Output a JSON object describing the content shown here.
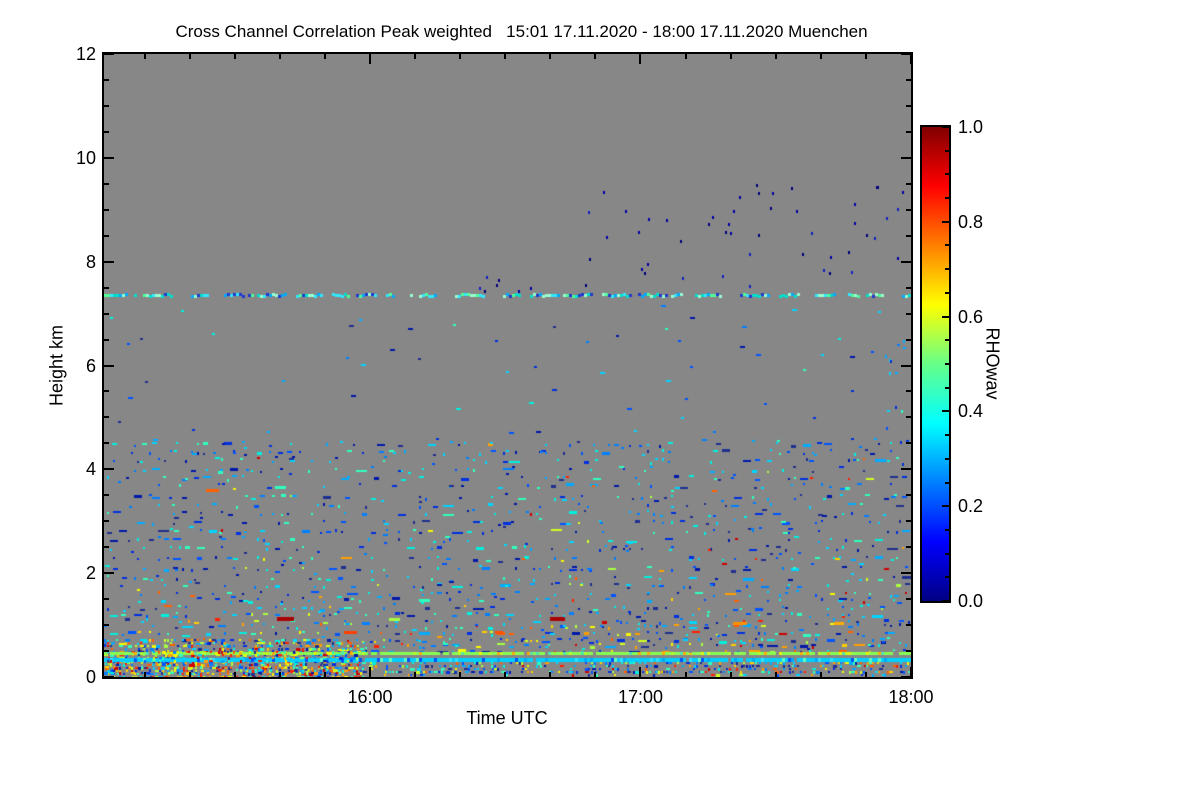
{
  "chart_data": {
    "type": "heatmap",
    "title": "Cross Channel Correlation Peak weighted   15:01 17.11.2020 - 18:00 17.11.2020 Muenchen",
    "station": "Muenchen",
    "time_start": "15:01 17.11.2020",
    "time_end": "18:00 17.11.2020",
    "xlabel": "Time UTC",
    "ylabel": "Height km",
    "colorbar_label": "RHOwav",
    "x_start_min": 901,
    "x_end_min": 1080,
    "x_major_ticks": [
      {
        "min": 960,
        "label": "16:00"
      },
      {
        "min": 1020,
        "label": "17:00"
      },
      {
        "min": 1080,
        "label": "18:00"
      }
    ],
    "x_minor_step_min": 10,
    "y_min": 0,
    "y_max": 12,
    "y_major_step": 2,
    "y_minor_step": 0.5,
    "y_tick_labels": [
      "0",
      "2",
      "4",
      "6",
      "8",
      "10",
      "12"
    ],
    "cbar_min": 0.0,
    "cbar_max": 1.0,
    "cbar_major_step": 0.2,
    "cbar_minor_step": 0.05,
    "cbar_tick_labels": [
      "0.0",
      "0.2",
      "0.4",
      "0.6",
      "0.8",
      "1.0"
    ],
    "colormap": [
      {
        "p": 0.0,
        "c": "#000083"
      },
      {
        "p": 0.125,
        "c": "#0000ff"
      },
      {
        "p": 0.375,
        "c": "#00ffff"
      },
      {
        "p": 0.5,
        "c": "#66ff88"
      },
      {
        "p": 0.625,
        "c": "#ffff00"
      },
      {
        "p": 0.875,
        "c": "#ff0000"
      },
      {
        "p": 1.0,
        "c": "#800000"
      }
    ],
    "background": "#878787",
    "features": {
      "palettes": {
        "cold": [
          "#0018a8",
          "#0030e0",
          "#0055ff",
          "#0080ff",
          "#00aaff",
          "#00d5ff",
          "#00f0e0",
          "#30ffc0",
          "#203090"
        ],
        "warm": [
          "#a8ff40",
          "#d0ff20",
          "#f8f800",
          "#ffd000",
          "#ffa000",
          "#ff6000",
          "#ff2000",
          "#d00000"
        ],
        "navy": [
          "#000080",
          "#0000a8",
          "#1020c8"
        ],
        "cyan_line": [
          "#00d0ff",
          "#30e0ff",
          "#00aaff",
          "#0050ff",
          "#60ffc0"
        ],
        "green_line": [
          "#88ff50",
          "#b8ff28",
          "#e8f800",
          "#50e8b0",
          "#ffb000"
        ],
        "line735": [
          "#00e0cc",
          "#30e8ff",
          "#00aaff",
          "#2038d0",
          "#50ff99",
          "#98ffd0"
        ]
      },
      "speckle_bands": [
        [
          0.5,
          0.42,
          0.28
        ],
        [
          0.62,
          0.36,
          0.3
        ],
        [
          0.72,
          0.32,
          0.26
        ],
        [
          0.85,
          0.3,
          0.22
        ],
        [
          1.0,
          0.24,
          0.25
        ],
        [
          1.1,
          0.17,
          0.22
        ],
        [
          1.22,
          0.17,
          0.12
        ],
        [
          1.35,
          0.16,
          0.15
        ],
        [
          1.5,
          0.12,
          0.06
        ],
        [
          1.62,
          0.16,
          0.1
        ],
        [
          1.78,
          0.12,
          0.06
        ],
        [
          1.92,
          0.14,
          0.06
        ],
        [
          2.1,
          0.16,
          0.1
        ],
        [
          2.3,
          0.15,
          0.06
        ],
        [
          2.5,
          0.17,
          0.1
        ],
        [
          2.65,
          0.13,
          0.05
        ],
        [
          2.82,
          0.15,
          0.05
        ],
        [
          3.0,
          0.12,
          0.05
        ],
        [
          3.18,
          0.13,
          0.05
        ],
        [
          3.32,
          0.1,
          0.04
        ],
        [
          3.48,
          0.12,
          0.04
        ],
        [
          3.7,
          0.1,
          0.04
        ],
        [
          3.85,
          0.16,
          0.08
        ],
        [
          4.0,
          0.13,
          0.05
        ],
        [
          4.18,
          0.12,
          0.03
        ],
        [
          4.35,
          0.16,
          0.03
        ],
        [
          4.5,
          0.09,
          0.02
        ]
      ],
      "sparse_fields": [
        {
          "x0": 0,
          "x1": 1,
          "y0": 0.5,
          "y1": 4.6,
          "n": 380,
          "pal": "cold",
          "warm": 0.08
        },
        {
          "x0": 0,
          "x1": 1,
          "y0": 4.7,
          "y1": 7.2,
          "n": 60,
          "pal": "cold",
          "warm": 0.0
        }
      ],
      "scatter_regions": [
        {
          "x0": 0.58,
          "x1": 1.0,
          "y0": 7.5,
          "y1": 9.5,
          "n": 48,
          "pal": "navy"
        },
        {
          "x0": 0.44,
          "x1": 0.56,
          "y0": 7.45,
          "y1": 7.75,
          "n": 7,
          "pal": "navy"
        },
        {
          "x0": 0.965,
          "x1": 1.0,
          "y0": 4.0,
          "y1": 6.6,
          "n": 10,
          "pal": "cold"
        }
      ],
      "dense_regions": [
        {
          "x0": 0,
          "x1": 0.32,
          "y0": 0.0,
          "y1": 0.3,
          "d": 0.62,
          "warm": 0.55
        },
        {
          "x0": 0,
          "x1": 0.32,
          "y0": 0.3,
          "y1": 0.72,
          "d": 0.4,
          "warm": 0.45
        },
        {
          "x0": 0.32,
          "x1": 1,
          "y0": 0.1,
          "y1": 0.28,
          "d": 0.34,
          "warm": 0.26
        },
        {
          "x0": 0.32,
          "x1": 1,
          "y0": 0.0,
          "y1": 0.1,
          "d": 0.14,
          "warm": 0.3
        },
        {
          "x0": 0,
          "x1": 0.32,
          "y0": 0.05,
          "y1": 0.5,
          "d": 0.22,
          "warm": 0.5,
          "over": true
        }
      ],
      "solid_lines": [
        {
          "y": 0.32,
          "th": 4,
          "pal": "cyan_line",
          "gap": 0.02
        },
        {
          "y": 0.44,
          "th": 3,
          "pal": "green_line",
          "gap": 0.06
        }
      ],
      "broken_line": {
        "y": 7.35,
        "th": 3,
        "run_mean": 5,
        "gap_mean": 3,
        "pal": "line735"
      },
      "marks": [
        {
          "x": 0.215,
          "y": 1.1,
          "w": 17,
          "h": 4,
          "c": "#aa0000"
        },
        {
          "x": 0.553,
          "y": 1.1,
          "w": 15,
          "h": 4,
          "c": "#aa0000"
        },
        {
          "x": 0.127,
          "y": 3.58,
          "w": 13,
          "h": 3,
          "c": "#ff6000"
        },
        {
          "x": 0.78,
          "y": 1.02,
          "w": 14,
          "h": 3,
          "c": "#ff9000"
        },
        {
          "x": 0.905,
          "y": 1.02,
          "w": 10,
          "h": 3,
          "c": "#ffb000"
        },
        {
          "x": 0.298,
          "y": 0.85,
          "w": 13,
          "h": 3,
          "c": "#ff4000"
        },
        {
          "x": 0.485,
          "y": 0.85,
          "w": 8,
          "h": 3,
          "c": "#ff5000"
        }
      ]
    }
  }
}
